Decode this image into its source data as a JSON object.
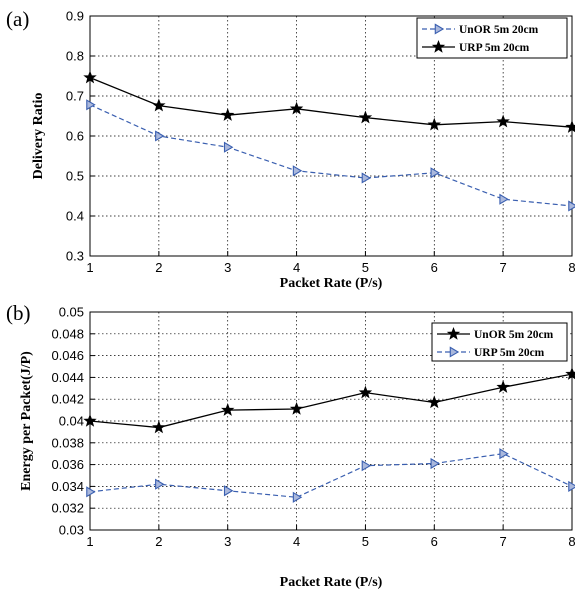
{
  "chart_data": [
    {
      "type": "line",
      "panel_label": "(a)",
      "xlabel": "Packet Rate (P/s)",
      "ylabel": "Delivery Ratio",
      "xlim": [
        1,
        8
      ],
      "ylim": [
        0.3,
        0.9
      ],
      "x_ticks": [
        "1",
        "2",
        "3",
        "4",
        "5",
        "6",
        "7",
        "8"
      ],
      "y_ticks": [
        "0.3",
        "0.4",
        "0.5",
        "0.6",
        "0.7",
        "0.8",
        "0.9"
      ],
      "grid": true,
      "legend_position": "top-right",
      "x": [
        1,
        2,
        3,
        4,
        5,
        6,
        7,
        8
      ],
      "series": [
        {
          "name": "UnOR 5m 20cm",
          "color": "#3a5fb0",
          "line_style": "dashed",
          "marker": "triangle-right",
          "values": [
            0.678,
            0.6,
            0.572,
            0.513,
            0.495,
            0.508,
            0.442,
            0.425
          ]
        },
        {
          "name": "URP 5m 20cm",
          "color": "#000000",
          "line_style": "solid",
          "marker": "star",
          "values": [
            0.746,
            0.676,
            0.652,
            0.668,
            0.646,
            0.628,
            0.636,
            0.622
          ]
        }
      ]
    },
    {
      "type": "line",
      "panel_label": "(b)",
      "xlabel": "Packet Rate (P/s)",
      "ylabel": "Energy per Packet(J/P)",
      "xlim": [
        1,
        8
      ],
      "ylim": [
        0.03,
        0.05
      ],
      "x_ticks": [
        "1",
        "2",
        "3",
        "4",
        "5",
        "6",
        "7",
        "8"
      ],
      "y_ticks": [
        "0.03",
        "0.032",
        "0.034",
        "0.036",
        "0.038",
        "0.04",
        "0.042",
        "0.044",
        "0.046",
        "0.048",
        "0.05"
      ],
      "grid": true,
      "legend_position": "top-right",
      "x": [
        1,
        2,
        3,
        4,
        5,
        6,
        7,
        8
      ],
      "series": [
        {
          "name": "UnOR 5m 20cm",
          "color": "#000000",
          "line_style": "solid",
          "marker": "star",
          "values": [
            0.04,
            0.0394,
            0.041,
            0.0411,
            0.0426,
            0.0417,
            0.0431,
            0.0443
          ]
        },
        {
          "name": "URP 5m 20cm",
          "color": "#3a5fb0",
          "line_style": "dashed",
          "marker": "triangle-right",
          "values": [
            0.0335,
            0.0342,
            0.0336,
            0.033,
            0.0359,
            0.0361,
            0.037,
            0.034
          ]
        }
      ]
    }
  ]
}
